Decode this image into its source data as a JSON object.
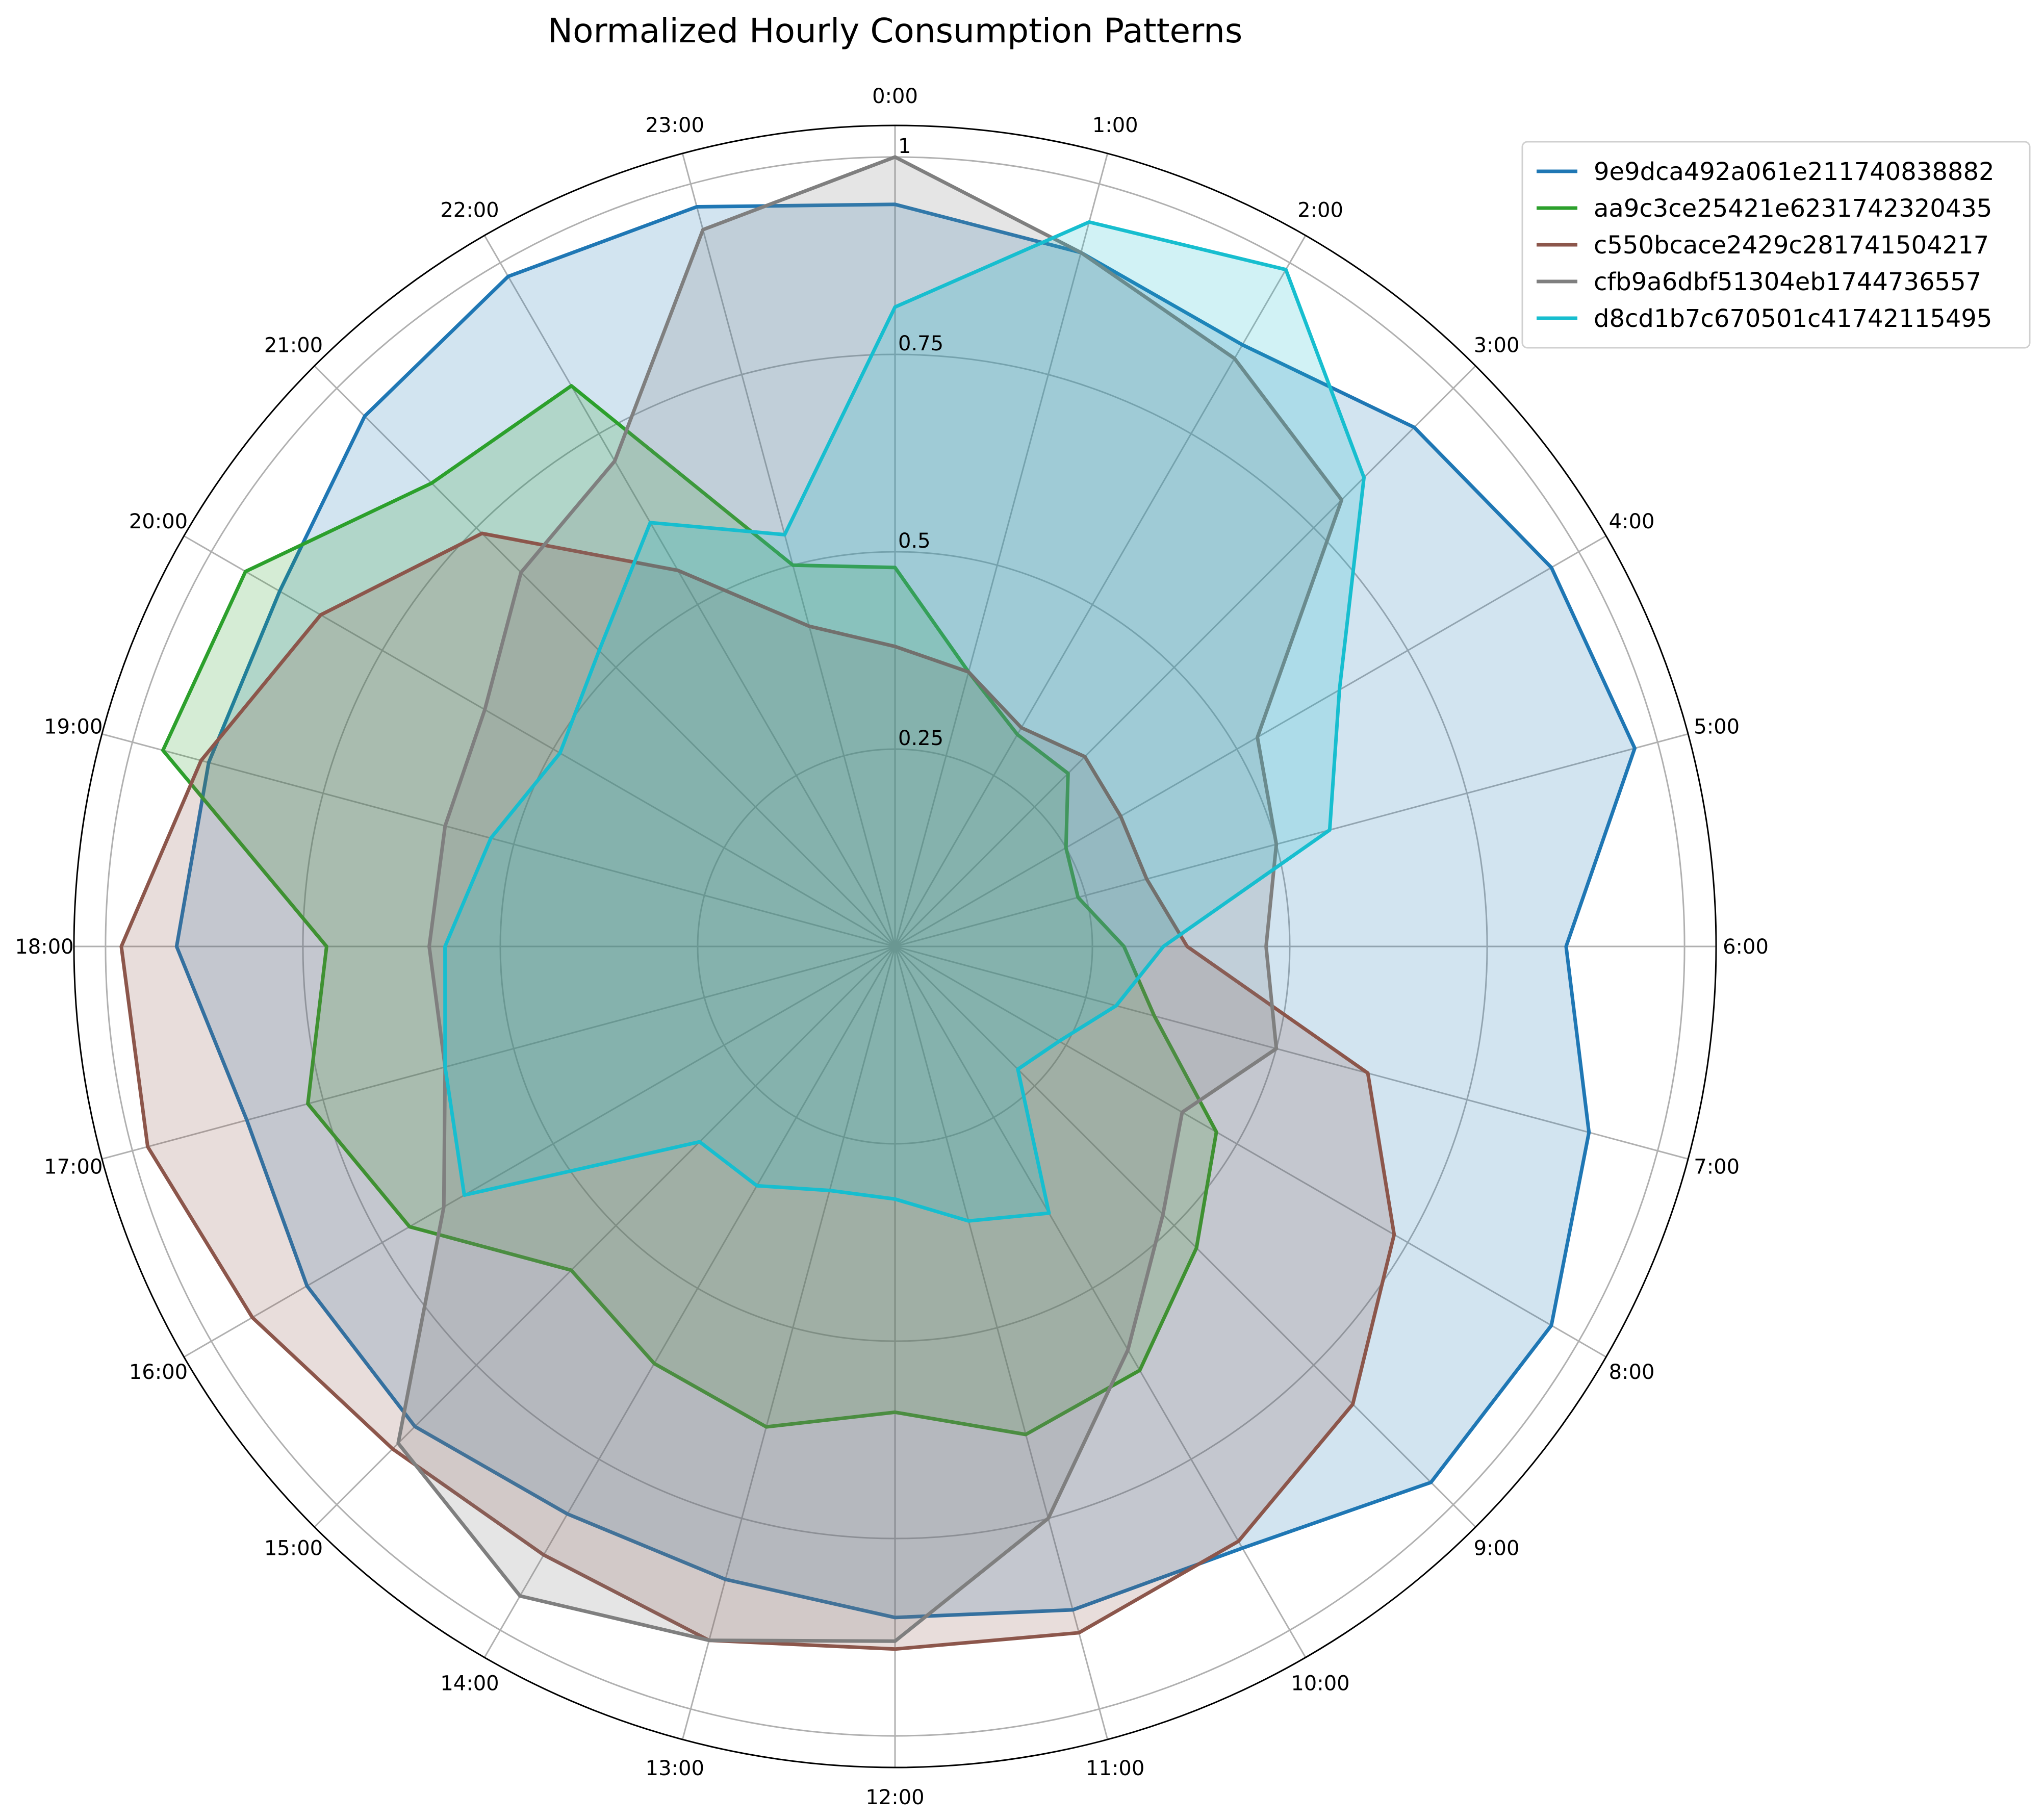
{
  "chart_data": {
    "type": "radar",
    "title": "Normalized Hourly Consumption Patterns",
    "categories": [
      "0:00",
      "1:00",
      "2:00",
      "3:00",
      "4:00",
      "5:00",
      "6:00",
      "7:00",
      "8:00",
      "9:00",
      "10:00",
      "11:00",
      "12:00",
      "13:00",
      "14:00",
      "15:00",
      "16:00",
      "17:00",
      "18:00",
      "19:00",
      "20:00",
      "21:00",
      "22:00",
      "23:00"
    ],
    "r_ticks": [
      0.25,
      0.5,
      0.75,
      1
    ],
    "r_tick_labels": [
      "0.25",
      "0.5",
      "0.75",
      "1"
    ],
    "rlim": [
      0,
      1.04
    ],
    "grid": true,
    "legend_position": "upper right, outside plot",
    "series": [
      {
        "name": "9e9dca492a061e211740838882",
        "color": "#1f77b4",
        "fill_opacity": 0.2,
        "values": [
          0.94,
          0.91,
          0.88,
          0.93,
          0.96,
          0.97,
          0.85,
          0.91,
          0.96,
          0.96,
          0.88,
          0.87,
          0.85,
          0.83,
          0.83,
          0.86,
          0.86,
          0.85,
          0.91,
          0.9,
          0.9,
          0.95,
          0.98,
          0.97
        ]
      },
      {
        "name": "aa9c3ce25421e6231742320435",
        "color": "#2ca02c",
        "fill_opacity": 0.2,
        "values": [
          0.48,
          0.36,
          0.31,
          0.31,
          0.25,
          0.24,
          0.29,
          0.34,
          0.47,
          0.54,
          0.62,
          0.64,
          0.59,
          0.63,
          0.61,
          0.58,
          0.71,
          0.77,
          0.72,
          0.96,
          0.95,
          0.83,
          0.82,
          0.5
        ]
      },
      {
        "name": "c550bcace2429c281741504217",
        "color": "#8c564b",
        "fill_opacity": 0.2,
        "values": [
          0.38,
          0.36,
          0.32,
          0.34,
          0.33,
          0.33,
          0.37,
          0.62,
          0.73,
          0.82,
          0.87,
          0.9,
          0.89,
          0.91,
          0.89,
          0.9,
          0.94,
          0.98,
          0.98,
          0.91,
          0.84,
          0.74,
          0.55,
          0.42
        ]
      },
      {
        "name": "cfb9a6dbf51304eb1744736557",
        "color": "#7f7f7f",
        "fill_opacity": 0.2,
        "values": [
          1.0,
          0.91,
          0.86,
          0.8,
          0.53,
          0.5,
          0.47,
          0.5,
          0.42,
          0.48,
          0.59,
          0.75,
          0.88,
          0.91,
          0.95,
          0.89,
          0.66,
          0.59,
          0.59,
          0.59,
          0.6,
          0.67,
          0.71,
          0.94
        ]
      },
      {
        "name": "d8cd1b7c670501c41742115495",
        "color": "#17becf",
        "fill_opacity": 0.2,
        "values": [
          0.81,
          0.95,
          0.99,
          0.84,
          0.65,
          0.57,
          0.34,
          0.29,
          0.24,
          0.22,
          0.39,
          0.36,
          0.32,
          0.32,
          0.35,
          0.35,
          0.63,
          0.59,
          0.57,
          0.53,
          0.49,
          0.53,
          0.62,
          0.54
        ]
      }
    ]
  }
}
